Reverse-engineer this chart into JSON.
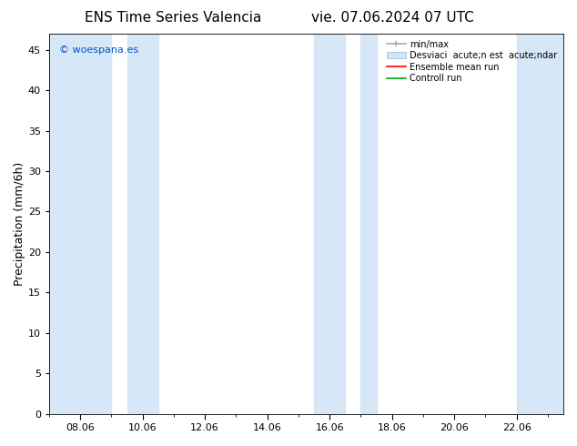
{
  "title_left": "ENS Time Series Valencia",
  "title_right": "vie. 07.06.2024 07 UTC",
  "ylabel": "Precipitation (mm/6h)",
  "watermark": "© woespana.es",
  "watermark_color": "#0055cc",
  "xlim_start": 7.0,
  "xlim_end": 23.5,
  "ylim": [
    0,
    47
  ],
  "yticks": [
    0,
    5,
    10,
    15,
    20,
    25,
    30,
    35,
    40,
    45
  ],
  "xtick_labels": [
    "08.06",
    "10.06",
    "12.06",
    "14.06",
    "16.06",
    "18.06",
    "20.06",
    "22.06"
  ],
  "xtick_positions": [
    8,
    10,
    12,
    14,
    16,
    18,
    20,
    22
  ],
  "bg_color": "#ffffff",
  "plot_bg_color": "#ffffff",
  "shaded_regions": [
    {
      "xmin": 7.0,
      "xmax": 9.0
    },
    {
      "xmin": 9.5,
      "xmax": 10.5
    },
    {
      "xmin": 15.5,
      "xmax": 16.5
    },
    {
      "xmin": 17.0,
      "xmax": 17.5
    },
    {
      "xmin": 22.0,
      "xmax": 23.5
    }
  ],
  "shade_color": "#d6e8f7",
  "legend_line1": "min/max",
  "legend_line2": "Desviaci  acute;n est  acute;ndar",
  "legend_line3": "Ensemble mean run",
  "legend_line4": "Controll run",
  "color_minmax": "#aaaaaa",
  "color_desv": "#d0e5f5",
  "color_ensemble": "#ff0000",
  "color_control": "#00aa00",
  "title_fontsize": 11,
  "label_fontsize": 9,
  "tick_fontsize": 8,
  "legend_fontsize": 7
}
